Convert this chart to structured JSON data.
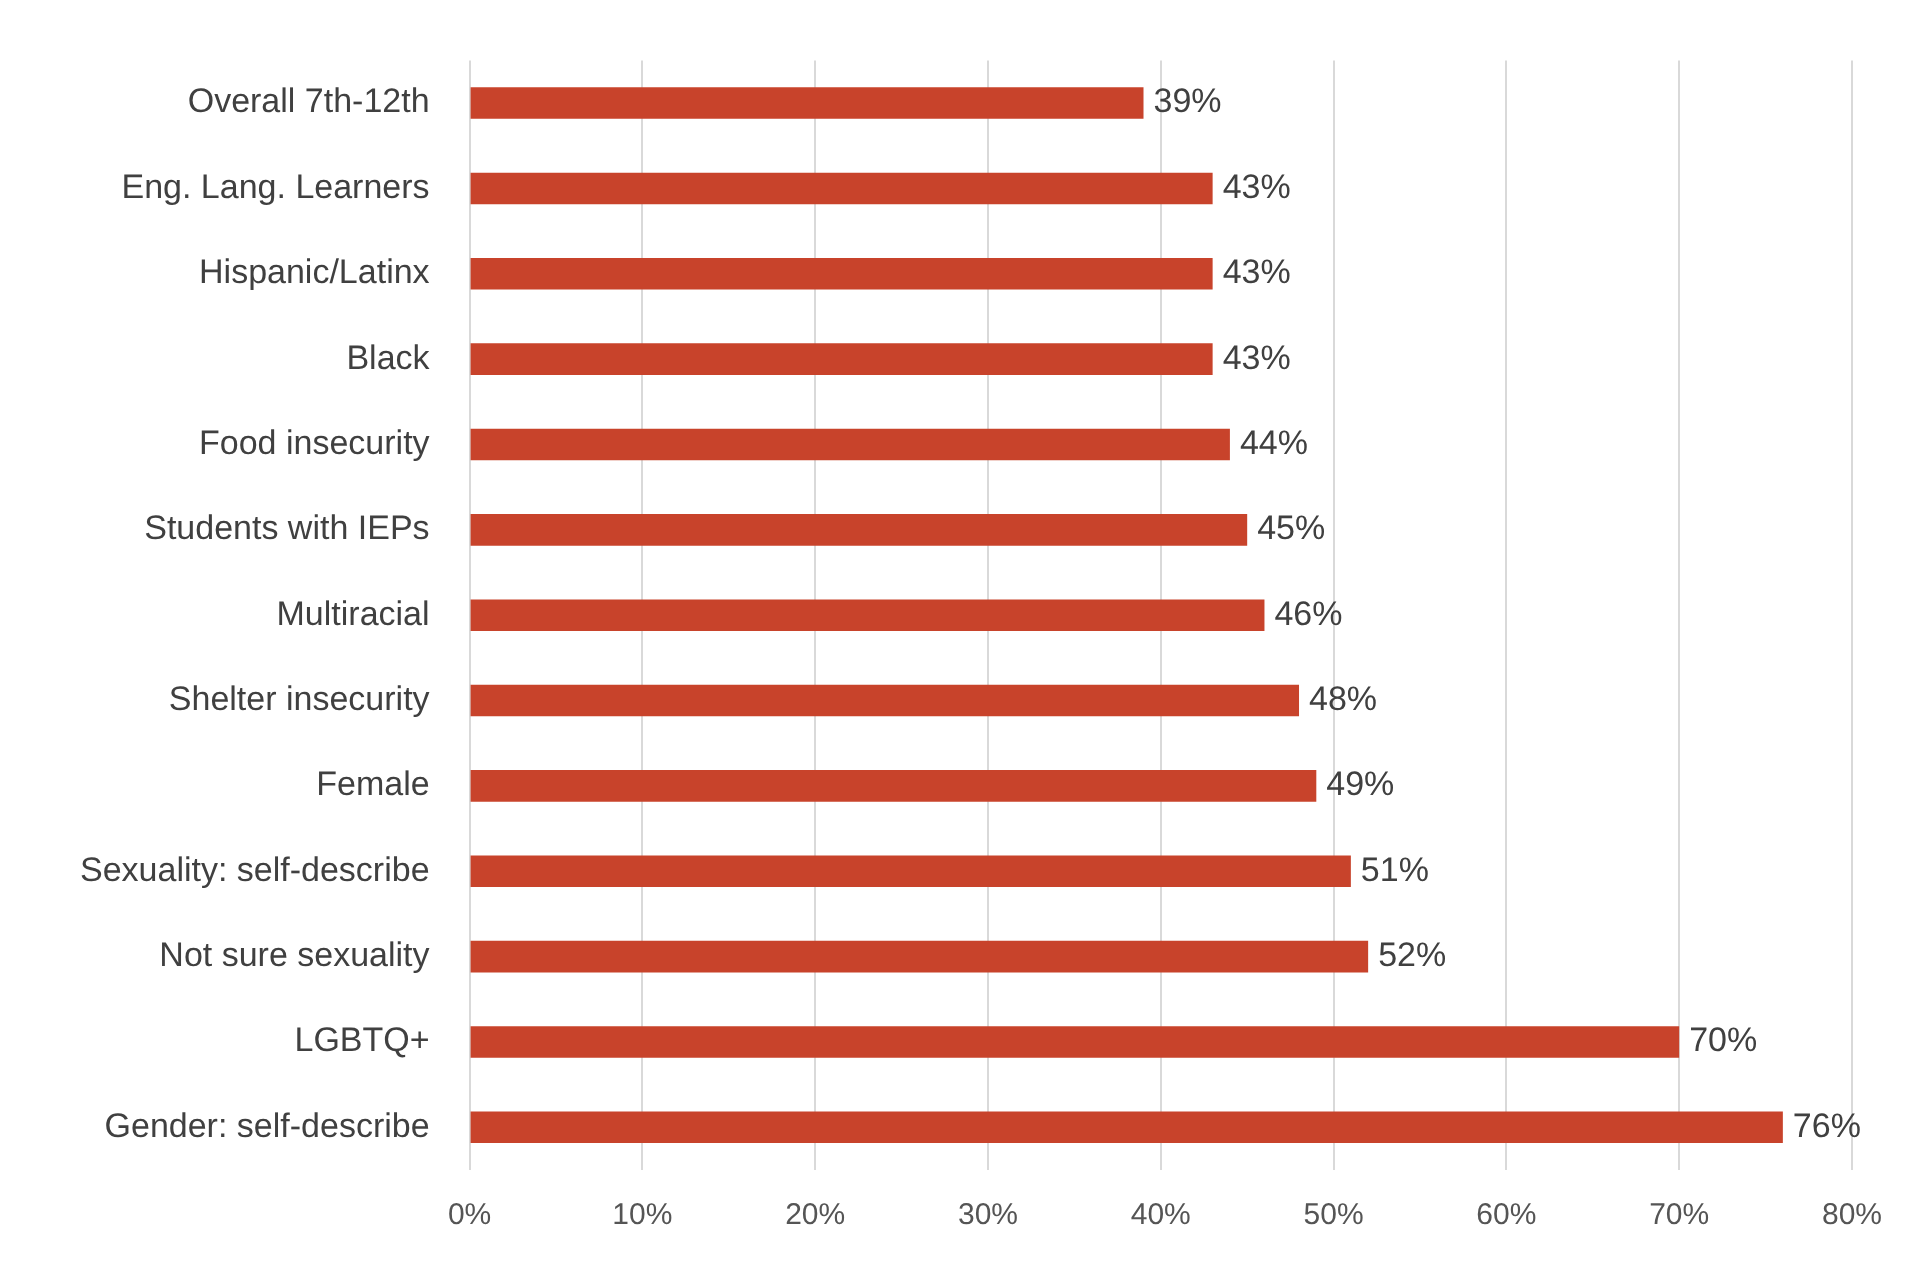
{
  "chart_data": {
    "type": "bar",
    "orientation": "horizontal",
    "categories": [
      "Overall 7th-12th",
      "Eng. Lang. Learners",
      "Hispanic/Latinx",
      "Black",
      "Food insecurity",
      "Students with IEPs",
      "Multiracial",
      "Shelter insecurity",
      "Female",
      "Sexuality: self-describe",
      "Not sure sexuality",
      "LGBTQ+",
      "Gender: self-describe"
    ],
    "values": [
      39,
      43,
      43,
      43,
      44,
      45,
      46,
      48,
      49,
      51,
      52,
      70,
      76
    ],
    "value_labels": [
      "39%",
      "43%",
      "43%",
      "43%",
      "44%",
      "45%",
      "46%",
      "48%",
      "49%",
      "51%",
      "52%",
      "70%",
      "76%"
    ],
    "color": "#c8432b",
    "xlim": [
      0,
      80
    ],
    "xticks": [
      {
        "value": 0,
        "label": "0%"
      },
      {
        "value": 10,
        "label": "10%"
      },
      {
        "value": 20,
        "label": "20%"
      },
      {
        "value": 30,
        "label": "30%"
      },
      {
        "value": 40,
        "label": "40%"
      },
      {
        "value": 50,
        "label": "50%"
      },
      {
        "value": 60,
        "label": "60%"
      },
      {
        "value": 70,
        "label": "70%"
      },
      {
        "value": 80,
        "label": "80%"
      }
    ],
    "grid": "x"
  }
}
